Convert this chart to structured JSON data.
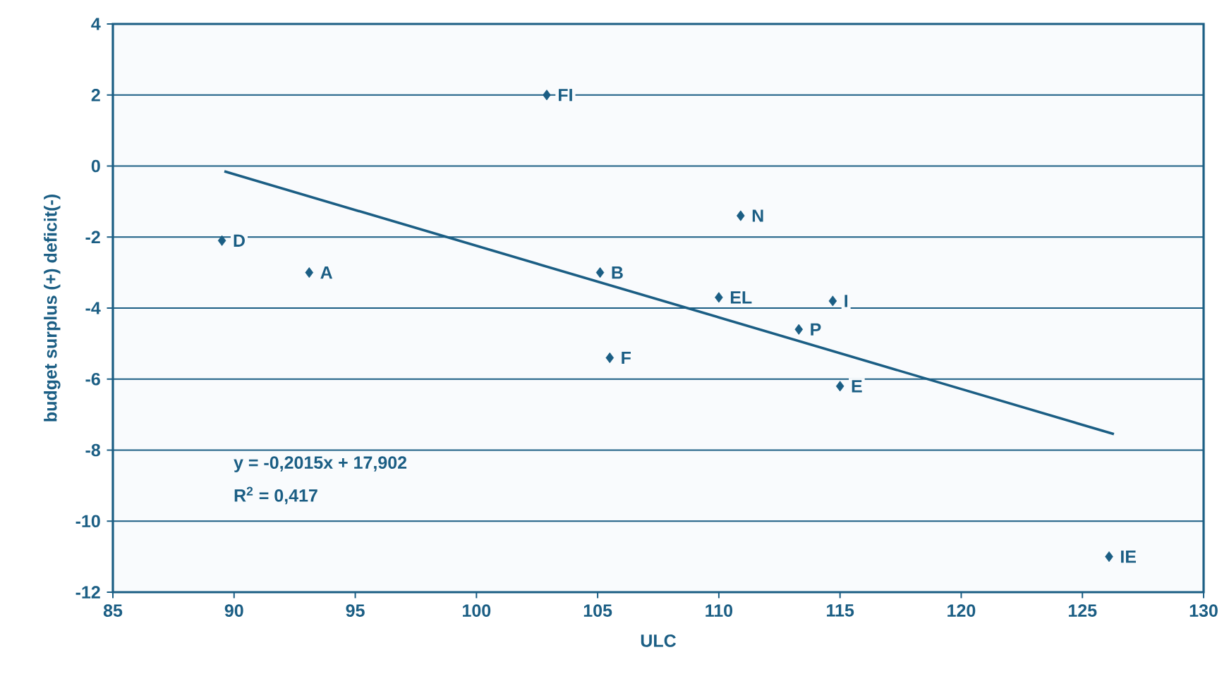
{
  "chart_data": {
    "type": "scatter",
    "xlabel": "ULC",
    "ylabel": "budget surplus (+) deficit(-)",
    "xlim": [
      85,
      130
    ],
    "xticks": [
      85,
      90,
      95,
      100,
      105,
      110,
      115,
      120,
      125,
      130
    ],
    "ylim": [
      -12,
      4
    ],
    "yticks": [
      -12,
      -10,
      -8,
      -6,
      -4,
      -2,
      0,
      2,
      4
    ],
    "grid": "y",
    "marker": "diamond",
    "series": [
      {
        "color": "#1b5e84",
        "x": [
          102.9,
          89.5,
          93.1,
          105.1,
          105.5,
          110.9,
          110.0,
          114.7,
          113.3,
          115.0,
          126.1
        ],
        "values": [
          2.0,
          -2.1,
          -3.0,
          -3.0,
          -5.4,
          -1.4,
          -3.7,
          -3.8,
          -4.6,
          -6.2,
          -11.0
        ]
      },
      {
        "type": "line",
        "color": "#1b5e84",
        "line_style": "solid",
        "marker": "none",
        "x": [
          89.6,
          126.3
        ],
        "values": [
          -0.15,
          -7.55
        ]
      }
    ],
    "annotations": [
      {
        "text": "FI",
        "x": 102.9,
        "y": 2.0
      },
      {
        "text": "D",
        "x": 89.5,
        "y": -2.1
      },
      {
        "text": "A",
        "x": 93.1,
        "y": -3.0
      },
      {
        "text": "B",
        "x": 105.1,
        "y": -3.0
      },
      {
        "text": "F",
        "x": 105.5,
        "y": -5.4
      },
      {
        "text": "N",
        "x": 110.9,
        "y": -1.4
      },
      {
        "text": "EL",
        "x": 110.0,
        "y": -3.7
      },
      {
        "text": "I",
        "x": 114.7,
        "y": -3.8
      },
      {
        "text": "P",
        "x": 113.3,
        "y": -4.6
      },
      {
        "text": "E",
        "x": 115.0,
        "y": -6.2
      },
      {
        "text": "IE",
        "x": 126.1,
        "y": -11.0
      },
      "y = -0,2015x + 17,902",
      "R$^{2}$ = 0,417"
    ]
  }
}
